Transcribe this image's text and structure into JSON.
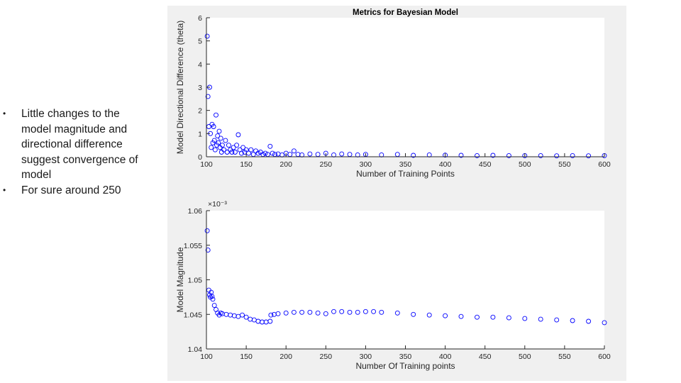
{
  "slide": {
    "bullets": [
      "Little changes to the model magnitude and directional difference suggest convergence of model",
      "For sure around 250"
    ],
    "bullet_glyph": "•"
  },
  "chart_data": [
    {
      "type": "scatter",
      "title": "Metrics for Bayesian Model",
      "xlabel": "Number of Training Points",
      "ylabel": "Model Directional Difference (theta)",
      "xlim": [
        100,
        600
      ],
      "ylim": [
        0,
        6
      ],
      "xticks": [
        100,
        150,
        200,
        250,
        300,
        350,
        400,
        450,
        500,
        550,
        600
      ],
      "yticks": [
        0,
        1,
        2,
        3,
        4,
        5,
        6
      ],
      "grid": false,
      "marker": "open-circle",
      "color": "#0000ff",
      "series": [
        {
          "x": [
            101,
            102,
            103,
            104,
            105,
            106,
            107,
            108,
            109,
            110,
            111,
            112,
            113,
            114,
            115,
            116,
            117,
            118,
            119,
            120,
            122,
            124,
            126,
            128,
            130,
            132,
            134,
            136,
            138,
            140,
            142,
            144,
            146,
            148,
            150,
            153,
            156,
            159,
            162,
            165,
            168,
            171,
            174,
            177,
            180,
            183,
            186,
            190,
            195,
            200,
            205,
            210,
            215,
            220,
            230,
            240,
            250,
            260,
            270,
            280,
            290,
            300,
            320,
            340,
            360,
            380,
            400,
            420,
            440,
            460,
            480,
            500,
            520,
            540,
            560,
            580,
            600
          ],
          "y": [
            5.2,
            2.6,
            1.3,
            3.0,
            1.0,
            0.4,
            1.4,
            0.6,
            1.3,
            0.7,
            0.3,
            1.8,
            0.5,
            0.9,
            0.6,
            1.1,
            0.4,
            0.8,
            0.2,
            0.5,
            0.3,
            0.7,
            0.2,
            0.5,
            0.3,
            0.2,
            0.4,
            0.2,
            0.5,
            0.95,
            0.3,
            0.15,
            0.4,
            0.2,
            0.3,
            0.15,
            0.3,
            0.1,
            0.25,
            0.15,
            0.2,
            0.1,
            0.15,
            0.1,
            0.45,
            0.15,
            0.1,
            0.12,
            0.08,
            0.15,
            0.1,
            0.25,
            0.1,
            0.08,
            0.12,
            0.1,
            0.15,
            0.08,
            0.12,
            0.1,
            0.08,
            0.1,
            0.08,
            0.1,
            0.06,
            0.08,
            0.07,
            0.06,
            0.05,
            0.06,
            0.05,
            0.05,
            0.05,
            0.04,
            0.05,
            0.04,
            0.05
          ]
        }
      ]
    },
    {
      "type": "scatter",
      "title": "",
      "xlabel": "Number Of Training points",
      "ylabel": "Model Magnitude",
      "exponent_label": "×10⁻³",
      "xlim": [
        100,
        600
      ],
      "ylim": [
        1.04,
        1.06
      ],
      "xticks": [
        100,
        150,
        200,
        250,
        300,
        350,
        400,
        450,
        500,
        550,
        600
      ],
      "yticks": [
        1.04,
        1.045,
        1.05,
        1.055,
        1.06
      ],
      "ytick_labels": [
        "1.04",
        "1.045",
        "1.05",
        "1.055",
        "1.06"
      ],
      "grid": false,
      "marker": "open-circle",
      "color": "#0000ff",
      "series": [
        {
          "x": [
            101,
            102,
            103,
            104,
            105,
            106,
            107,
            108,
            110,
            112,
            114,
            116,
            118,
            120,
            125,
            130,
            135,
            140,
            145,
            150,
            155,
            160,
            165,
            170,
            175,
            180,
            181,
            185,
            190,
            200,
            210,
            220,
            230,
            240,
            250,
            260,
            270,
            280,
            290,
            300,
            310,
            320,
            340,
            360,
            380,
            400,
            420,
            440,
            460,
            480,
            500,
            520,
            540,
            560,
            580,
            600
          ],
          "y": [
            1.0571,
            1.0543,
            1.0485,
            1.0478,
            1.0475,
            1.0482,
            1.0476,
            1.0472,
            1.0463,
            1.0457,
            1.0452,
            1.0449,
            1.0452,
            1.0451,
            1.045,
            1.0449,
            1.0448,
            1.0447,
            1.0449,
            1.0446,
            1.0443,
            1.0442,
            1.044,
            1.0439,
            1.0439,
            1.044,
            1.0449,
            1.045,
            1.0451,
            1.0452,
            1.0453,
            1.0453,
            1.0453,
            1.0452,
            1.0451,
            1.0454,
            1.0454,
            1.0453,
            1.0453,
            1.0454,
            1.0454,
            1.0453,
            1.0452,
            1.045,
            1.0449,
            1.0448,
            1.0447,
            1.0446,
            1.0446,
            1.0445,
            1.0444,
            1.0443,
            1.0442,
            1.0441,
            1.044,
            1.0438
          ]
        }
      ]
    }
  ]
}
